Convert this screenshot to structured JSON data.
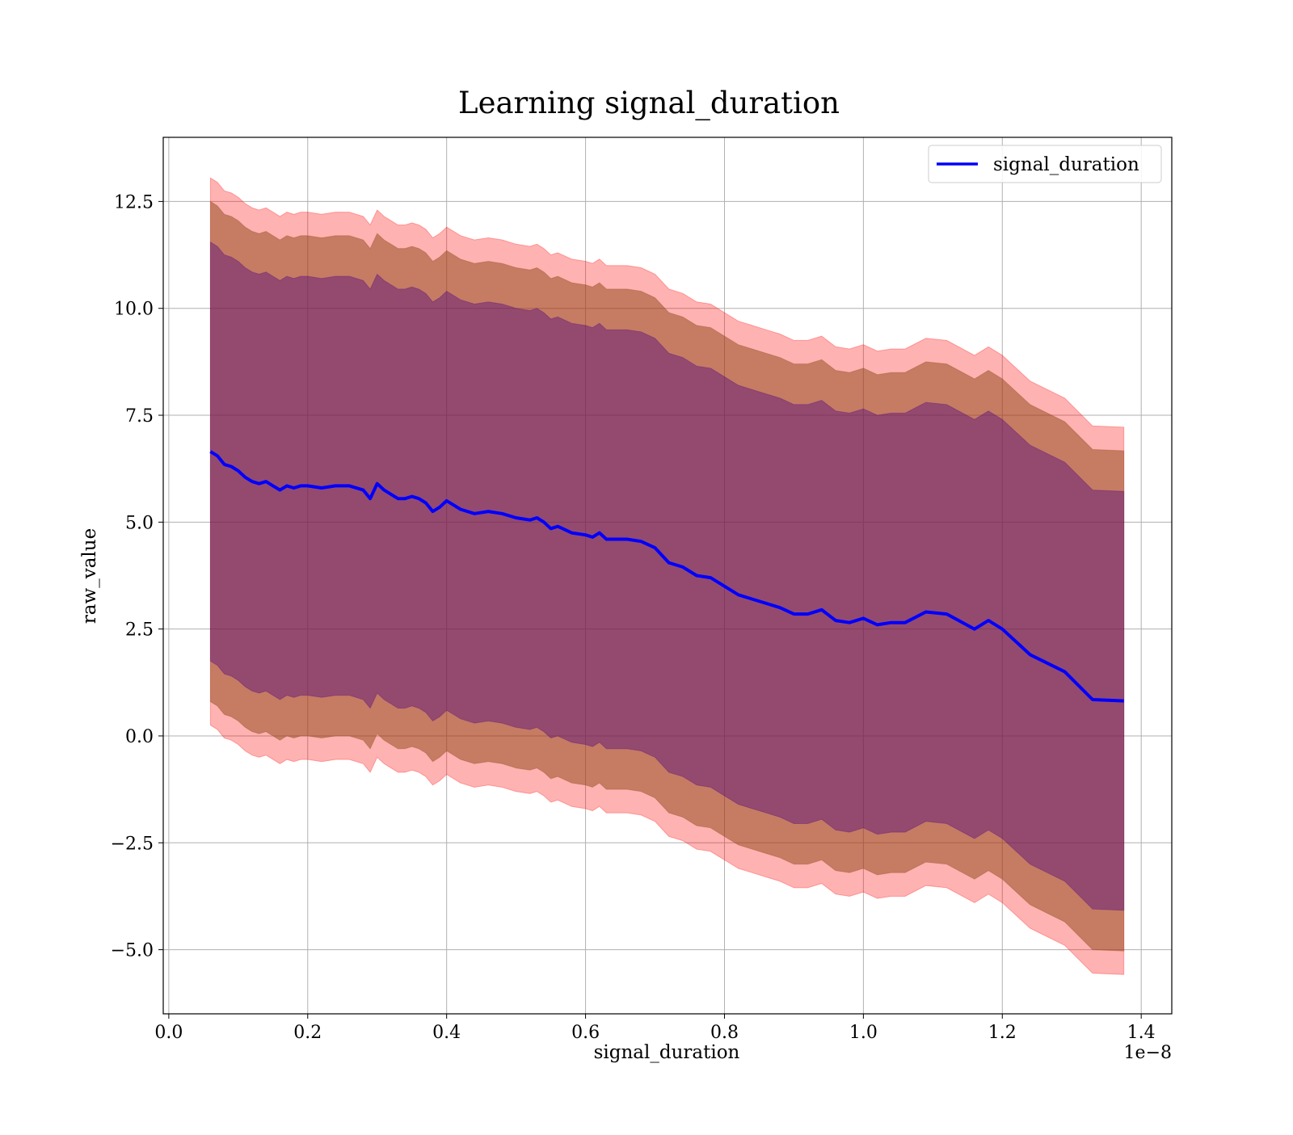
{
  "chart_data": {
    "type": "line",
    "title": "Learning signal_duration",
    "xlabel": "signal_duration",
    "ylabel": "raw_value",
    "x_offset_label": "1e−8",
    "xlim": [
      -0.008,
      1.444
    ],
    "ylim": [
      -6.5,
      14.0
    ],
    "x_ticks": [
      0.0,
      0.2,
      0.4,
      0.6,
      0.8,
      1.0,
      1.2,
      1.4
    ],
    "x_tick_labels": [
      "0.0",
      "0.2",
      "0.4",
      "0.6",
      "0.8",
      "1.0",
      "1.2",
      "1.4"
    ],
    "y_ticks": [
      12.5,
      10.0,
      7.5,
      5.0,
      2.5,
      0.0,
      -2.5,
      -5.0
    ],
    "y_tick_labels": [
      "12.5",
      "10.0",
      "7.5",
      "5.0",
      "2.5",
      "0.0",
      "−2.5",
      "−5.0"
    ],
    "grid": true,
    "legend": {
      "placement": "top-right",
      "entries": [
        "signal_duration"
      ]
    },
    "colors": {
      "line": "#0000ff",
      "band_outer": "#ff0000",
      "band_middle": "#8b4513",
      "band_inner": "#4b0082"
    },
    "series": [
      {
        "name": "signal_duration",
        "x": [
          0.06,
          0.07,
          0.08,
          0.09,
          0.1,
          0.11,
          0.12,
          0.13,
          0.14,
          0.15,
          0.16,
          0.17,
          0.18,
          0.19,
          0.2,
          0.22,
          0.24,
          0.26,
          0.28,
          0.29,
          0.3,
          0.31,
          0.32,
          0.33,
          0.34,
          0.35,
          0.36,
          0.37,
          0.38,
          0.39,
          0.4,
          0.41,
          0.42,
          0.44,
          0.46,
          0.48,
          0.5,
          0.52,
          0.53,
          0.54,
          0.55,
          0.56,
          0.58,
          0.6,
          0.61,
          0.62,
          0.63,
          0.66,
          0.68,
          0.7,
          0.72,
          0.74,
          0.76,
          0.78,
          0.8,
          0.82,
          0.84,
          0.86,
          0.88,
          0.9,
          0.92,
          0.94,
          0.96,
          0.98,
          1.0,
          1.02,
          1.04,
          1.06,
          1.09,
          1.12,
          1.16,
          1.18,
          1.2,
          1.24,
          1.29,
          1.33,
          1.375
        ]
      }
    ],
    "mean": [
      6.65,
      6.55,
      6.35,
      6.3,
      6.2,
      6.05,
      5.95,
      5.9,
      5.95,
      5.85,
      5.75,
      5.85,
      5.8,
      5.85,
      5.85,
      5.8,
      5.85,
      5.85,
      5.75,
      5.55,
      5.9,
      5.75,
      5.65,
      5.55,
      5.55,
      5.6,
      5.55,
      5.45,
      5.25,
      5.35,
      5.5,
      5.4,
      5.3,
      5.2,
      5.25,
      5.2,
      5.1,
      5.05,
      5.1,
      5.0,
      4.85,
      4.9,
      4.75,
      4.7,
      4.65,
      4.75,
      4.6,
      4.6,
      4.55,
      4.4,
      4.05,
      3.95,
      3.75,
      3.7,
      3.5,
      3.3,
      3.2,
      3.1,
      3.0,
      2.85,
      2.85,
      2.95,
      2.7,
      2.65,
      2.75,
      2.6,
      2.65,
      2.65,
      2.9,
      2.85,
      2.5,
      2.7,
      2.5,
      1.9,
      1.5,
      0.85,
      0.82
    ],
    "band_inner_halfwidth": [
      4.9,
      4.9,
      4.9,
      4.9,
      4.9,
      4.9,
      4.9,
      4.9,
      4.9,
      4.9,
      4.9,
      4.9,
      4.9,
      4.9,
      4.9,
      4.9,
      4.9,
      4.9,
      4.9,
      4.9,
      4.9,
      4.9,
      4.9,
      4.9,
      4.9,
      4.9,
      4.9,
      4.9,
      4.9,
      4.9,
      4.9,
      4.9,
      4.9,
      4.9,
      4.9,
      4.9,
      4.9,
      4.9,
      4.9,
      4.9,
      4.9,
      4.9,
      4.9,
      4.9,
      4.9,
      4.9,
      4.9,
      4.9,
      4.9,
      4.9,
      4.9,
      4.9,
      4.9,
      4.9,
      4.9,
      4.9,
      4.9,
      4.9,
      4.9,
      4.9,
      4.9,
      4.9,
      4.9,
      4.9,
      4.9,
      4.9,
      4.9,
      4.9,
      4.9,
      4.9,
      4.9,
      4.9,
      4.9,
      4.9,
      4.9,
      4.9,
      4.9
    ],
    "band_middle_halfwidth": [
      5.85,
      5.85,
      5.85,
      5.85,
      5.85,
      5.85,
      5.85,
      5.85,
      5.85,
      5.85,
      5.85,
      5.85,
      5.85,
      5.85,
      5.85,
      5.85,
      5.85,
      5.85,
      5.85,
      5.85,
      5.85,
      5.85,
      5.85,
      5.85,
      5.85,
      5.85,
      5.85,
      5.85,
      5.85,
      5.85,
      5.85,
      5.85,
      5.85,
      5.85,
      5.85,
      5.85,
      5.85,
      5.85,
      5.85,
      5.85,
      5.85,
      5.85,
      5.85,
      5.85,
      5.85,
      5.85,
      5.85,
      5.85,
      5.85,
      5.85,
      5.85,
      5.85,
      5.85,
      5.85,
      5.85,
      5.85,
      5.85,
      5.85,
      5.85,
      5.85,
      5.85,
      5.85,
      5.85,
      5.85,
      5.85,
      5.85,
      5.85,
      5.85,
      5.85,
      5.85,
      5.85,
      5.85,
      5.85,
      5.85,
      5.85,
      5.85,
      5.85
    ],
    "band_outer_halfwidth": [
      6.4,
      6.4,
      6.4,
      6.4,
      6.4,
      6.4,
      6.4,
      6.4,
      6.4,
      6.4,
      6.4,
      6.4,
      6.4,
      6.4,
      6.4,
      6.4,
      6.4,
      6.4,
      6.4,
      6.4,
      6.4,
      6.4,
      6.4,
      6.4,
      6.4,
      6.4,
      6.4,
      6.4,
      6.4,
      6.4,
      6.4,
      6.4,
      6.4,
      6.4,
      6.4,
      6.4,
      6.4,
      6.4,
      6.4,
      6.4,
      6.4,
      6.4,
      6.4,
      6.4,
      6.4,
      6.4,
      6.4,
      6.4,
      6.4,
      6.4,
      6.4,
      6.4,
      6.4,
      6.4,
      6.4,
      6.4,
      6.4,
      6.4,
      6.4,
      6.4,
      6.4,
      6.4,
      6.4,
      6.4,
      6.4,
      6.4,
      6.4,
      6.4,
      6.4,
      6.4,
      6.4,
      6.4,
      6.4,
      6.4,
      6.4,
      6.4,
      6.4
    ]
  }
}
